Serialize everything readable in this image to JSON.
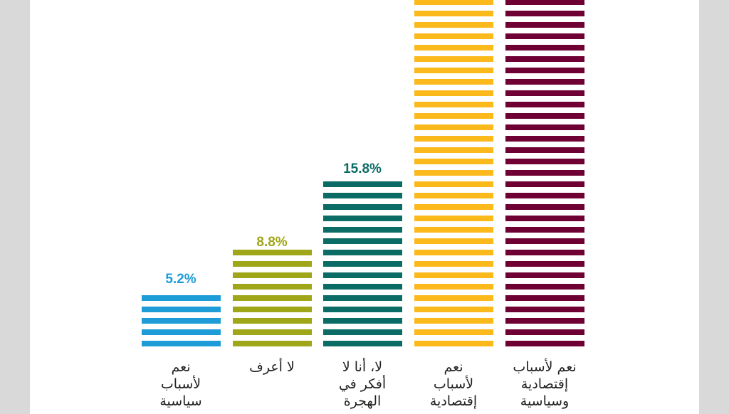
{
  "chart_data": {
    "type": "bar",
    "title": "",
    "xlabel": "",
    "ylabel": "",
    "categories": [
      "نعم\nلأسباب\nسياسية",
      "لا أعرف",
      "لا، أنا لا\nأفكر في\nالهجرة",
      "نعم\nلأسباب\nإقتصادية",
      "نعم لأسباب\nإقتصادية\nوسياسية"
    ],
    "values": [
      5.2,
      8.8,
      15.8,
      null,
      null
    ],
    "value_labels": [
      "5.2%",
      "8.8%",
      "15.8%",
      "",
      ""
    ],
    "colors": [
      "#1e9cd7",
      "#9fa617",
      "#0b6b65",
      "#fbb91c",
      "#6e0033"
    ],
    "bar_style": "horizontal-stripes",
    "note_values": "last two bars extend beyond the visible top edge; their values are not visible"
  }
}
